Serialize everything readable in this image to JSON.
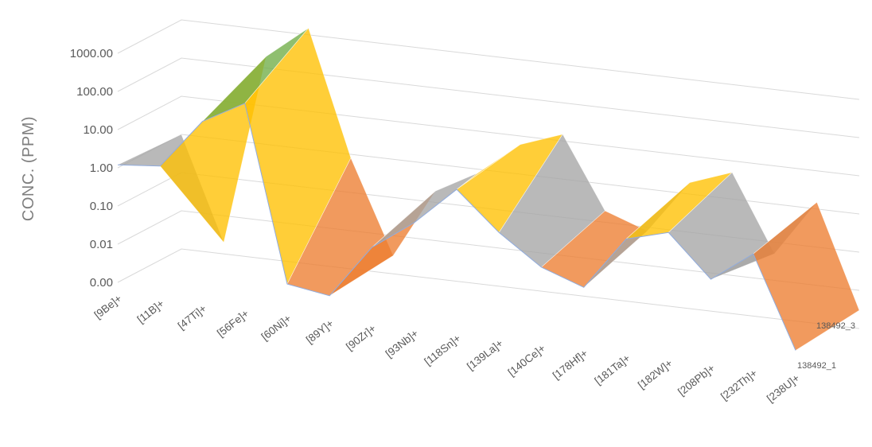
{
  "chart_data": {
    "type": "surface",
    "ylabel": "CONC. (PPM)",
    "yscale": "log",
    "y_tick_labels": [
      "0.00",
      "0.01",
      "0.10",
      "1.00",
      "10.00",
      "100.00",
      "1000.00"
    ],
    "categories": [
      "[9Be]+",
      "[11B]+",
      "[47Ti]+",
      "[56Fe]+",
      "[60Ni]+",
      "[89Y]+",
      "[90Zr]+",
      "[93Nb]+",
      "[118Sn]+",
      "[139La]+",
      "[140Ce]+",
      "[178Hf]+",
      "[181Ta]+",
      "[182W]+",
      "[208Pb]+",
      "[232Th]+",
      "[238U]+"
    ],
    "series": [
      {
        "name": "138492_1",
        "values": [
          1.2,
          1.5,
          30,
          120,
          0.003,
          0.002,
          0.05,
          0.3,
          3,
          0.3,
          0.05,
          0.02,
          0.5,
          1,
          0.08,
          0.5,
          0.002
        ]
      },
      {
        "name": "138492_3",
        "values": [
          1.0,
          0.002,
          200,
          1500,
          0.8,
          0.003,
          0.2,
          0.8,
          6,
          15,
          0.2,
          0.08,
          2,
          5,
          0.05,
          1.5,
          0.003
        ]
      }
    ],
    "band_colors": [
      "#4472c4",
      "#ed7d31",
      "#a5a5a5",
      "#ffc000",
      "#5b9bd5",
      "#70ad47"
    ],
    "grid": true,
    "legend": "none"
  }
}
